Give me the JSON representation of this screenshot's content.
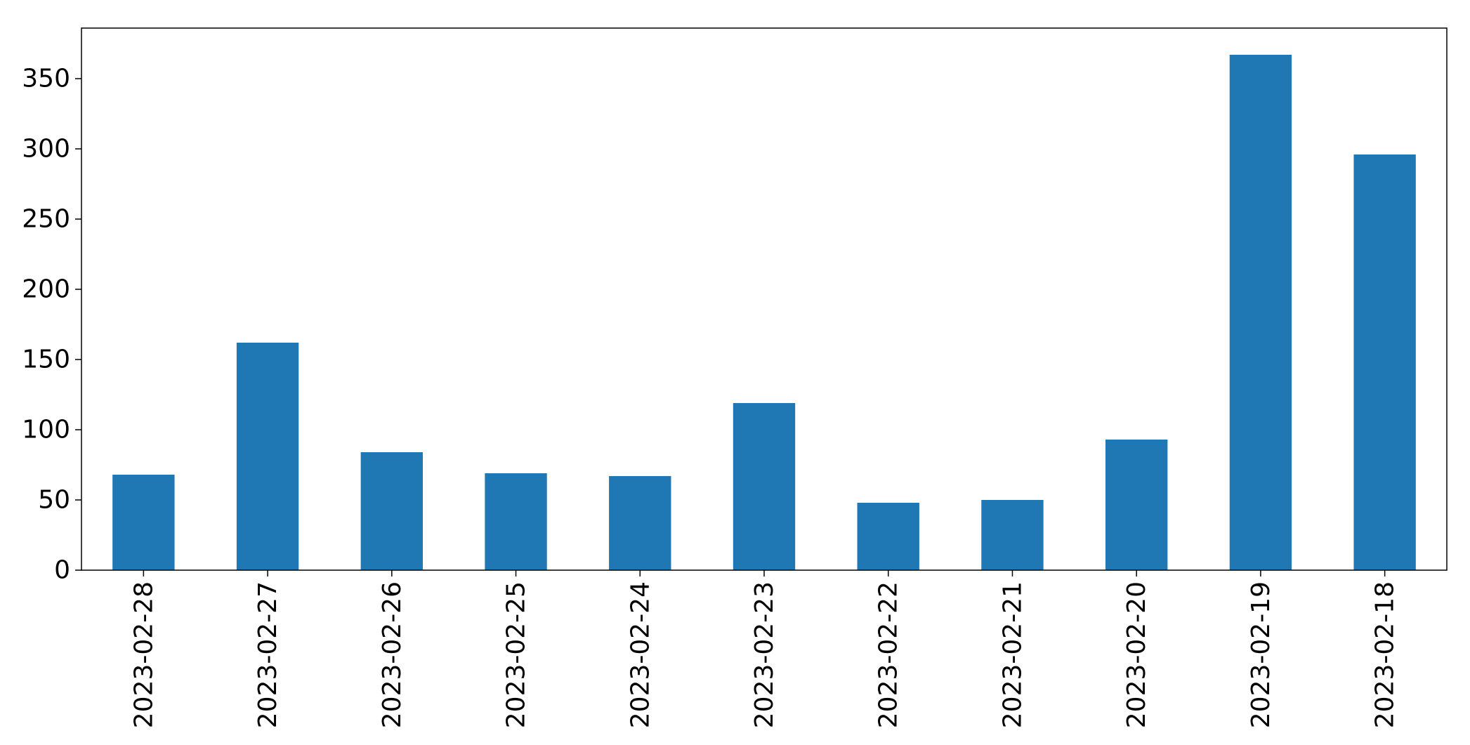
{
  "chart_data": {
    "type": "bar",
    "title": "",
    "xlabel": "",
    "ylabel": "",
    "categories": [
      "2023-02-28",
      "2023-02-27",
      "2023-02-26",
      "2023-02-25",
      "2023-02-24",
      "2023-02-23",
      "2023-02-22",
      "2023-02-21",
      "2023-02-20",
      "2023-02-19",
      "2023-02-18"
    ],
    "values": [
      68,
      162,
      84,
      69,
      67,
      119,
      48,
      50,
      93,
      367,
      296
    ],
    "ylim": [
      0,
      386
    ],
    "yticks": [
      0,
      50,
      100,
      150,
      200,
      250,
      300,
      350
    ],
    "ytick_labels": [
      "0",
      "50",
      "100",
      "150",
      "200",
      "250",
      "300",
      "350"
    ],
    "bar_color": "#1f77b4",
    "grid": false,
    "legend": "none",
    "xtick_rotation": "vertical"
  }
}
